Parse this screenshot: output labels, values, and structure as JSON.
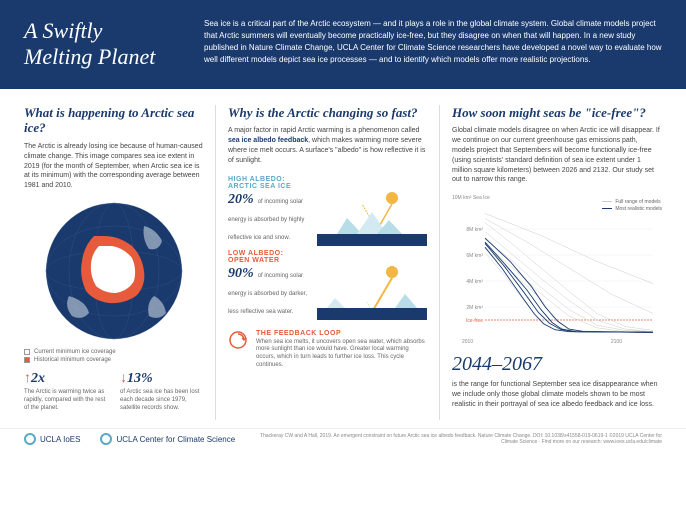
{
  "header": {
    "title": "A Swiftly Melting Planet",
    "intro": "Sea ice is a critical part of the Arctic ecosystem — and it plays a role in the global climate system. Global climate models project that Arctic summers will eventually become practically ice-free, but they disagree on when that will happen. In a new study published in Nature Climate Change, UCLA Center for Climate Science researchers have developed a novel way to evaluate how well different models depict sea ice processes — and to identify which models offer more realistic projections."
  },
  "col1": {
    "heading": "What is happening to Arctic sea ice?",
    "body": "The Arctic is already losing ice because of human-caused climate change. This image compares sea ice extent in 2019 (for the month of September, when Arctic sea ice is at its minimum) with the corresponding average between 1981 and 2010.",
    "globe": {
      "ocean_color": "#1a3a6e",
      "ice_current_color": "#ffffff",
      "ice_historical_color": "#e85a3c",
      "land_color": "#c8d4e0"
    },
    "legend": [
      {
        "box_fill": "#ffffff",
        "label": "Current minimum ice coverage"
      },
      {
        "box_fill": "#e85a3c",
        "label": "Historical minimum coverage"
      }
    ],
    "stats": [
      {
        "arrow": "↑",
        "value": "2x",
        "text": "The Arctic is warming twice as rapidly, compared with the rest of the planet."
      },
      {
        "arrow": "↓",
        "value": "13%",
        "text": "of Arctic sea ice has been lost each decade since 1979, satellite records show."
      }
    ]
  },
  "col2": {
    "heading": "Why is the Arctic changing so fast?",
    "body": "A major factor in rapid Arctic warming is a phenomenon called sea ice albedo feedback, which makes warming more severe where ice melt occurs. A surface's \"albedo\" is how reflective it is of sunlight.",
    "high": {
      "label1": "HIGH ALBEDO:",
      "label2": "ARCTIC SEA ICE",
      "pct": "20%",
      "text": "of incoming solar energy is absorbed by highly reflective ice and snow.",
      "ice_color": "#b8dce8",
      "sun_color": "#f4b642",
      "water_color": "#1a3a6e"
    },
    "low": {
      "label1": "LOW ALBEDO:",
      "label2": "OPEN WATER",
      "pct": "90%",
      "text": "of incoming solar energy is absorbed by darker, less reflective sea water.",
      "ice_color": "#b8dce8",
      "sun_color": "#f4b642",
      "water_color": "#1a3a6e"
    },
    "feedback": {
      "title": "THE FEEDBACK LOOP",
      "text": "When sea ice melts, it uncovers open sea water, which absorbs more sunlight than ice would have. Greater local warming occurs, which in turn leads to further ice loss. This cycle continues.",
      "icon_color": "#e85a3c"
    }
  },
  "col3": {
    "heading": "How soon might seas be \"ice-free\"?",
    "body": "Global climate models disagree on when Arctic ice will disappear. If we continue on our current greenhouse gas emissions path, models project that Septembers will become functionally ice-free (using scientists' standard definition of sea ice extent under 1 million square kilometers) between 2026 and 2132. Our study set out to narrow this range.",
    "chart": {
      "type": "line",
      "ylabel_top": "10M km² Sea Ice",
      "ylabels": [
        "8M km²",
        "6M km²",
        "4M km²",
        "2M km²"
      ],
      "ythresh_label": "Ice-free",
      "ythresh_color": "#e85a3c",
      "xlabels": [
        "2010",
        "2100"
      ],
      "xlim": [
        2010,
        2130
      ],
      "ylim": [
        0,
        10
      ],
      "legend": [
        {
          "color": "#cccccc",
          "label": "Full range of models"
        },
        {
          "color": "#1a3a6e",
          "label": "Most realistic models"
        }
      ],
      "grey_lines": [
        [
          [
            2010,
            8.5
          ],
          [
            2030,
            6.8
          ],
          [
            2050,
            5.0
          ],
          [
            2070,
            3.2
          ],
          [
            2090,
            1.5
          ],
          [
            2110,
            0.5
          ],
          [
            2130,
            0.2
          ]
        ],
        [
          [
            2010,
            7.8
          ],
          [
            2030,
            6.0
          ],
          [
            2050,
            4.2
          ],
          [
            2070,
            2.5
          ],
          [
            2090,
            1.0
          ],
          [
            2110,
            0.3
          ],
          [
            2130,
            0.1
          ]
        ],
        [
          [
            2010,
            7.2
          ],
          [
            2030,
            5.5
          ],
          [
            2050,
            3.5
          ],
          [
            2070,
            1.8
          ],
          [
            2090,
            0.6
          ],
          [
            2110,
            0.2
          ],
          [
            2130,
            0.1
          ]
        ],
        [
          [
            2010,
            6.8
          ],
          [
            2030,
            5.0
          ],
          [
            2050,
            3.0
          ],
          [
            2070,
            1.3
          ],
          [
            2090,
            0.4
          ],
          [
            2110,
            0.1
          ],
          [
            2130,
            0.05
          ]
        ],
        [
          [
            2010,
            6.5
          ],
          [
            2030,
            4.6
          ],
          [
            2050,
            2.6
          ],
          [
            2060,
            1.0
          ],
          [
            2070,
            0.3
          ],
          [
            2080,
            0.15
          ],
          [
            2130,
            0.05
          ]
        ],
        [
          [
            2010,
            6.2
          ],
          [
            2025,
            4.3
          ],
          [
            2040,
            2.2
          ],
          [
            2050,
            0.8
          ],
          [
            2060,
            0.25
          ],
          [
            2070,
            0.1
          ],
          [
            2130,
            0.05
          ]
        ],
        [
          [
            2010,
            8.8
          ],
          [
            2040,
            7.0
          ],
          [
            2070,
            5.0
          ],
          [
            2100,
            3.0
          ],
          [
            2130,
            1.5
          ]
        ],
        [
          [
            2010,
            9.2
          ],
          [
            2050,
            7.5
          ],
          [
            2090,
            5.5
          ],
          [
            2130,
            3.8
          ]
        ]
      ],
      "blue_lines": [
        [
          [
            2010,
            7.0
          ],
          [
            2025,
            5.2
          ],
          [
            2040,
            3.3
          ],
          [
            2050,
            1.8
          ],
          [
            2058,
            0.8
          ],
          [
            2065,
            0.3
          ],
          [
            2075,
            0.1
          ],
          [
            2130,
            0.05
          ]
        ],
        [
          [
            2010,
            6.6
          ],
          [
            2022,
            5.0
          ],
          [
            2035,
            3.0
          ],
          [
            2045,
            1.5
          ],
          [
            2052,
            0.7
          ],
          [
            2060,
            0.25
          ],
          [
            2070,
            0.1
          ],
          [
            2130,
            0.05
          ]
        ],
        [
          [
            2010,
            7.3
          ],
          [
            2028,
            5.5
          ],
          [
            2043,
            3.6
          ],
          [
            2053,
            2.0
          ],
          [
            2062,
            0.9
          ],
          [
            2070,
            0.3
          ],
          [
            2080,
            0.12
          ],
          [
            2130,
            0.05
          ]
        ],
        [
          [
            2010,
            6.9
          ],
          [
            2024,
            5.1
          ],
          [
            2038,
            3.1
          ],
          [
            2048,
            1.6
          ],
          [
            2056,
            0.75
          ],
          [
            2064,
            0.28
          ],
          [
            2074,
            0.1
          ],
          [
            2130,
            0.05
          ]
        ]
      ],
      "grey_color": "#cccccc",
      "blue_color": "#1a3a6e",
      "grid_color": "#eeeeee"
    },
    "year_range": "2044–2067",
    "conclusion": "is the range for functional September sea ice disappearance when we include only those global climate models shown to be most realistic in their portrayal of sea ice albedo feedback and ice loss."
  },
  "footer": {
    "logo1": "UCLA IoES",
    "logo2": "UCLA Center for Climate Science",
    "citation": "Thackeray CW and A Hall, 2019. An emergent constraint on future Arctic sea ice albedo feedback. Nature Climate Change. DOI: 10.1038/s41558-019-0619-1 ©2019 UCLA Center for Climate Science · Find more on our research: www.ioes.ucla.edu/climate"
  }
}
